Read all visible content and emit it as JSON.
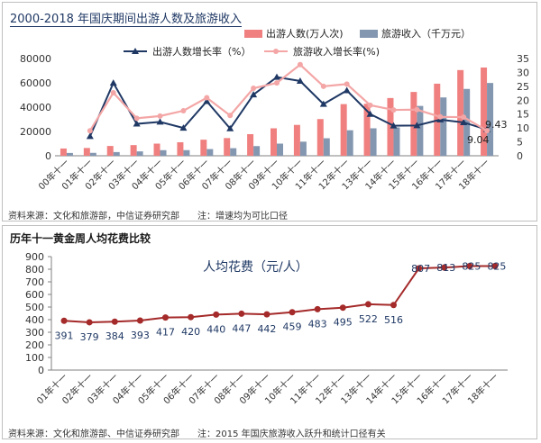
{
  "chart_data": [
    {
      "type": "bar",
      "title": "2000-2018 年国庆期间出游人数及旅游收入",
      "categories": [
        "00年十一",
        "01年十一",
        "02年十一",
        "03年十一",
        "04年十一",
        "05年十一",
        "06年十一",
        "07年十一",
        "08年十一",
        "09年十一",
        "10年十一",
        "11年十一",
        "12年十一",
        "13年十一",
        "14年十一",
        "15年十一",
        "16年十一",
        "17年十一",
        "18年十一"
      ],
      "ylim_left": [
        0,
        80000
      ],
      "yticks_left": [
        "0",
        "20000",
        "40000",
        "60000",
        "80000"
      ],
      "ylim_right": [
        0,
        35
      ],
      "yticks_right": [
        "0",
        "5",
        "10",
        "15",
        "20",
        "25",
        "30",
        "35"
      ],
      "series": [
        {
          "name": "出游人数(万人次)",
          "kind": "bar",
          "axis": "left",
          "color": "#f08080",
          "values": [
            5980,
            6397,
            8071,
            8770,
            10000,
            11130,
            13230,
            14570,
            17800,
            22600,
            25400,
            30200,
            42500,
            42800,
            47500,
            52500,
            59300,
            70500,
            72600
          ]
        },
        {
          "name": "旅游收入（千万元）",
          "kind": "bar",
          "axis": "left",
          "color": "#8497b0",
          "values": [
            2300,
            2400,
            3040,
            3610,
            4610,
            4630,
            5500,
            6230,
            7960,
            10000,
            11600,
            14400,
            21000,
            22600,
            23360,
            41000,
            48000,
            55000,
            59900
          ]
        },
        {
          "name": "出游人数增长率（%）",
          "kind": "line",
          "axis": "right",
          "color": "#1f3864",
          "values": [
            null,
            7.0,
            26.2,
            11.5,
            12.2,
            10.0,
            19.6,
            9.8,
            22.0,
            28.3,
            26.9,
            18.6,
            23.5,
            15.0,
            10.8,
            10.9,
            13.0,
            12.0,
            9.43
          ]
        },
        {
          "name": "旅游收入增长率(%)",
          "kind": "line",
          "axis": "right",
          "color": "#f4a6a6",
          "values": [
            null,
            9.0,
            22.7,
            13.5,
            14.3,
            16.2,
            20.9,
            14.5,
            24.3,
            26.2,
            32.8,
            25.0,
            25.8,
            18.2,
            16.5,
            16.6,
            14.0,
            13.9,
            9.04
          ]
        }
      ],
      "annotations": [
        {
          "label": "9.43",
          "series_index": 2,
          "point_index": 18
        },
        {
          "label": "9.04",
          "series_index": 3,
          "point_index": 18
        }
      ]
    },
    {
      "type": "line",
      "title": "历年十一黄金周人均花费比较",
      "categories": [
        "01年十一",
        "02年十一",
        "03年十一",
        "04年十一",
        "05年十一",
        "06年十一",
        "07年十一",
        "08年十一",
        "09年十一",
        "10年十一",
        "11年十一",
        "12年十一",
        "13年十一",
        "14年十一",
        "15年十一",
        "16年十一",
        "17年十一",
        "18年十一"
      ],
      "ylim": [
        0,
        900
      ],
      "yticks": [
        "0",
        "100",
        "200",
        "300",
        "400",
        "500",
        "600",
        "700",
        "800",
        "900"
      ],
      "series": [
        {
          "name": "人均花费（元/人）",
          "color": "#a52a2a",
          "values": [
            391,
            379,
            384,
            393,
            417,
            420,
            440,
            447,
            442,
            459,
            483,
            495,
            522,
            516,
            807,
            813,
            825,
            825
          ],
          "labels": [
            "391",
            "379",
            "384",
            "393",
            "417",
            "420",
            "440",
            "447",
            "442",
            "459",
            "483",
            "495",
            "522",
            "516",
            "807",
            "813",
            "825",
            "825"
          ]
        }
      ]
    }
  ],
  "header": {
    "title1": "2000-2018 年国庆期间出游人数及旅游收入",
    "title2": "历年十一黄金周人均花费比较",
    "source1": "资料来源：文化和旅游部，中信证券研究部　　注：增速均为可比口径",
    "source2": "资料来源：文化和旅游部、中信证券研究部　　注：2015 年国庆旅游收入跃升和统计口径有关"
  },
  "colors": {
    "bar1": "#f08080",
    "bar2": "#8497b0",
    "line1": "#1f3864",
    "line2": "#f4a6a6",
    "line3": "#a52a2a"
  }
}
